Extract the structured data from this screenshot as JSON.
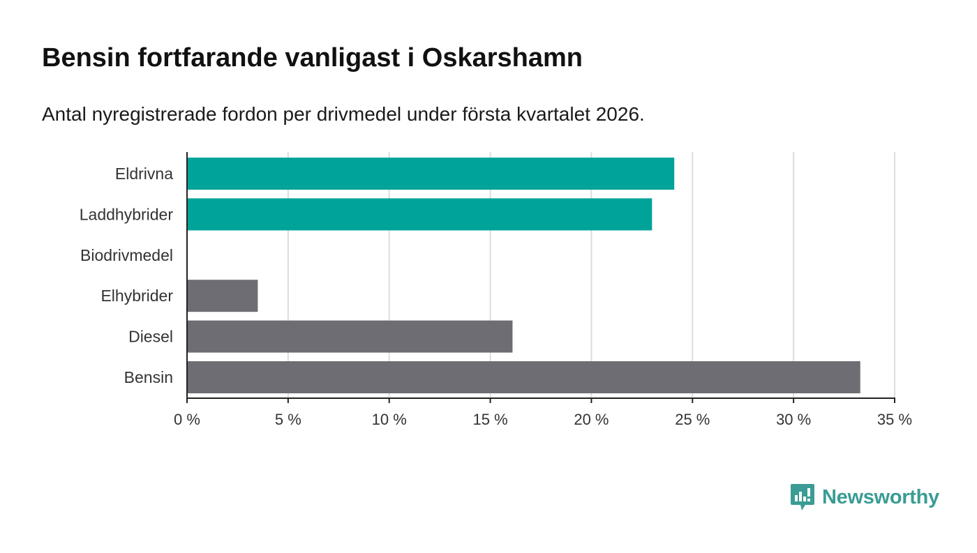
{
  "header": {
    "title": "Bensin fortfarande vanligast i Oskarshamn",
    "subtitle": "Antal nyregistrerade fordon per drivmedel under första kvartalet 2026."
  },
  "chart_data": {
    "type": "bar",
    "orientation": "horizontal",
    "categories": [
      "Eldrivna",
      "Laddhybrider",
      "Biodrivmedel",
      "Elhybrider",
      "Diesel",
      "Bensin"
    ],
    "values": [
      24.1,
      23.0,
      0,
      3.5,
      16.1,
      33.3
    ],
    "bar_colors": [
      "#00a398",
      "#00a398",
      "#00a398",
      "#6e6d73",
      "#6e6d73",
      "#6e6d73"
    ],
    "xlim": [
      0,
      35
    ],
    "xticks": [
      0,
      5,
      10,
      15,
      20,
      25,
      30,
      35
    ],
    "xtick_labels": [
      "0 %",
      "5 %",
      "10 %",
      "15 %",
      "20 %",
      "25 %",
      "30 %",
      "35 %"
    ],
    "grid": "vertical"
  },
  "logo": {
    "text": "Newsworthy",
    "icon": "bar-chart-speech-bubble-icon",
    "color": "#3a9c94"
  }
}
